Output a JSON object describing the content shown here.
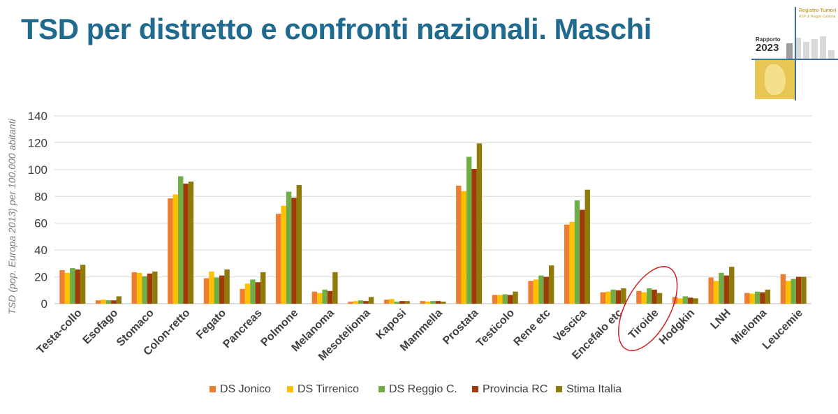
{
  "header": {
    "title": "TSD per distretto e confronti nazionali. Maschi"
  },
  "logo": {
    "registry_line1": "Registro Tumori",
    "registry_line2": "ASP di Reggio Calabria",
    "report_label": "Rapporto",
    "report_year": "2023"
  },
  "chart_data": {
    "type": "bar",
    "title": "",
    "xlabel": "",
    "ylabel": "TSD (pop. Europa 2013) per 100.000 abitanti",
    "ylim": [
      0,
      140
    ],
    "yticks": [
      0,
      20,
      40,
      60,
      80,
      100,
      120,
      140
    ],
    "grid": "horizontal",
    "legend_position": "bottom",
    "categories": [
      "Testa-collo",
      "Esofago",
      "Stomaco",
      "Colon-retto",
      "Fegato",
      "Pancreas",
      "Polmone",
      "Melanoma",
      "Mesotelioma",
      "Kaposi",
      "Mammella",
      "Prostata",
      "Testicolo",
      "Rene etc",
      "Vescica",
      "Encefalo etc",
      "Tiroide",
      "Hodgkin",
      "LNH",
      "Mieloma",
      "Leucemie"
    ],
    "series": [
      {
        "name": "DS Jonico",
        "color": "#ed7d31",
        "values": [
          25,
          2.5,
          23.5,
          78.5,
          19,
          11,
          67,
          9,
          1.5,
          3,
          2,
          88,
          6.5,
          17,
          59,
          8.5,
          9.5,
          5,
          19.5,
          8,
          22
        ]
      },
      {
        "name": "DS Tirrenico",
        "color": "#ffc000",
        "values": [
          23,
          3,
          23,
          81.5,
          24,
          15,
          73,
          8,
          2,
          3.5,
          1.5,
          84,
          6.5,
          18,
          61,
          9,
          8.5,
          4,
          17,
          7.5,
          17
        ]
      },
      {
        "name": "DS Reggio C.",
        "color": "#70ad47",
        "values": [
          26.5,
          2.5,
          20.5,
          95,
          19.5,
          18,
          83.5,
          10.5,
          2.5,
          1.5,
          2,
          109.5,
          7,
          21,
          77,
          10.5,
          11.5,
          5.5,
          23,
          9,
          18.5
        ]
      },
      {
        "name": "Provincia RC",
        "color": "#9e3b0a",
        "values": [
          25.5,
          2.5,
          22.5,
          89.5,
          21,
          16,
          79,
          9.5,
          2,
          2,
          2,
          100.5,
          6.5,
          20,
          70,
          10,
          10.5,
          4.5,
          21,
          8.5,
          20
        ]
      },
      {
        "name": "Stima Italia",
        "color": "#8f7a0a",
        "values": [
          29,
          5.5,
          24,
          91,
          25.5,
          23.5,
          88.5,
          23.5,
          5,
          2,
          1.5,
          119.5,
          9,
          28.5,
          85,
          11.5,
          8,
          4,
          27.5,
          10.5,
          20
        ]
      }
    ],
    "annotation": {
      "type": "ellipse-highlight",
      "category": "Tiroide",
      "color": "#cc2222"
    }
  }
}
